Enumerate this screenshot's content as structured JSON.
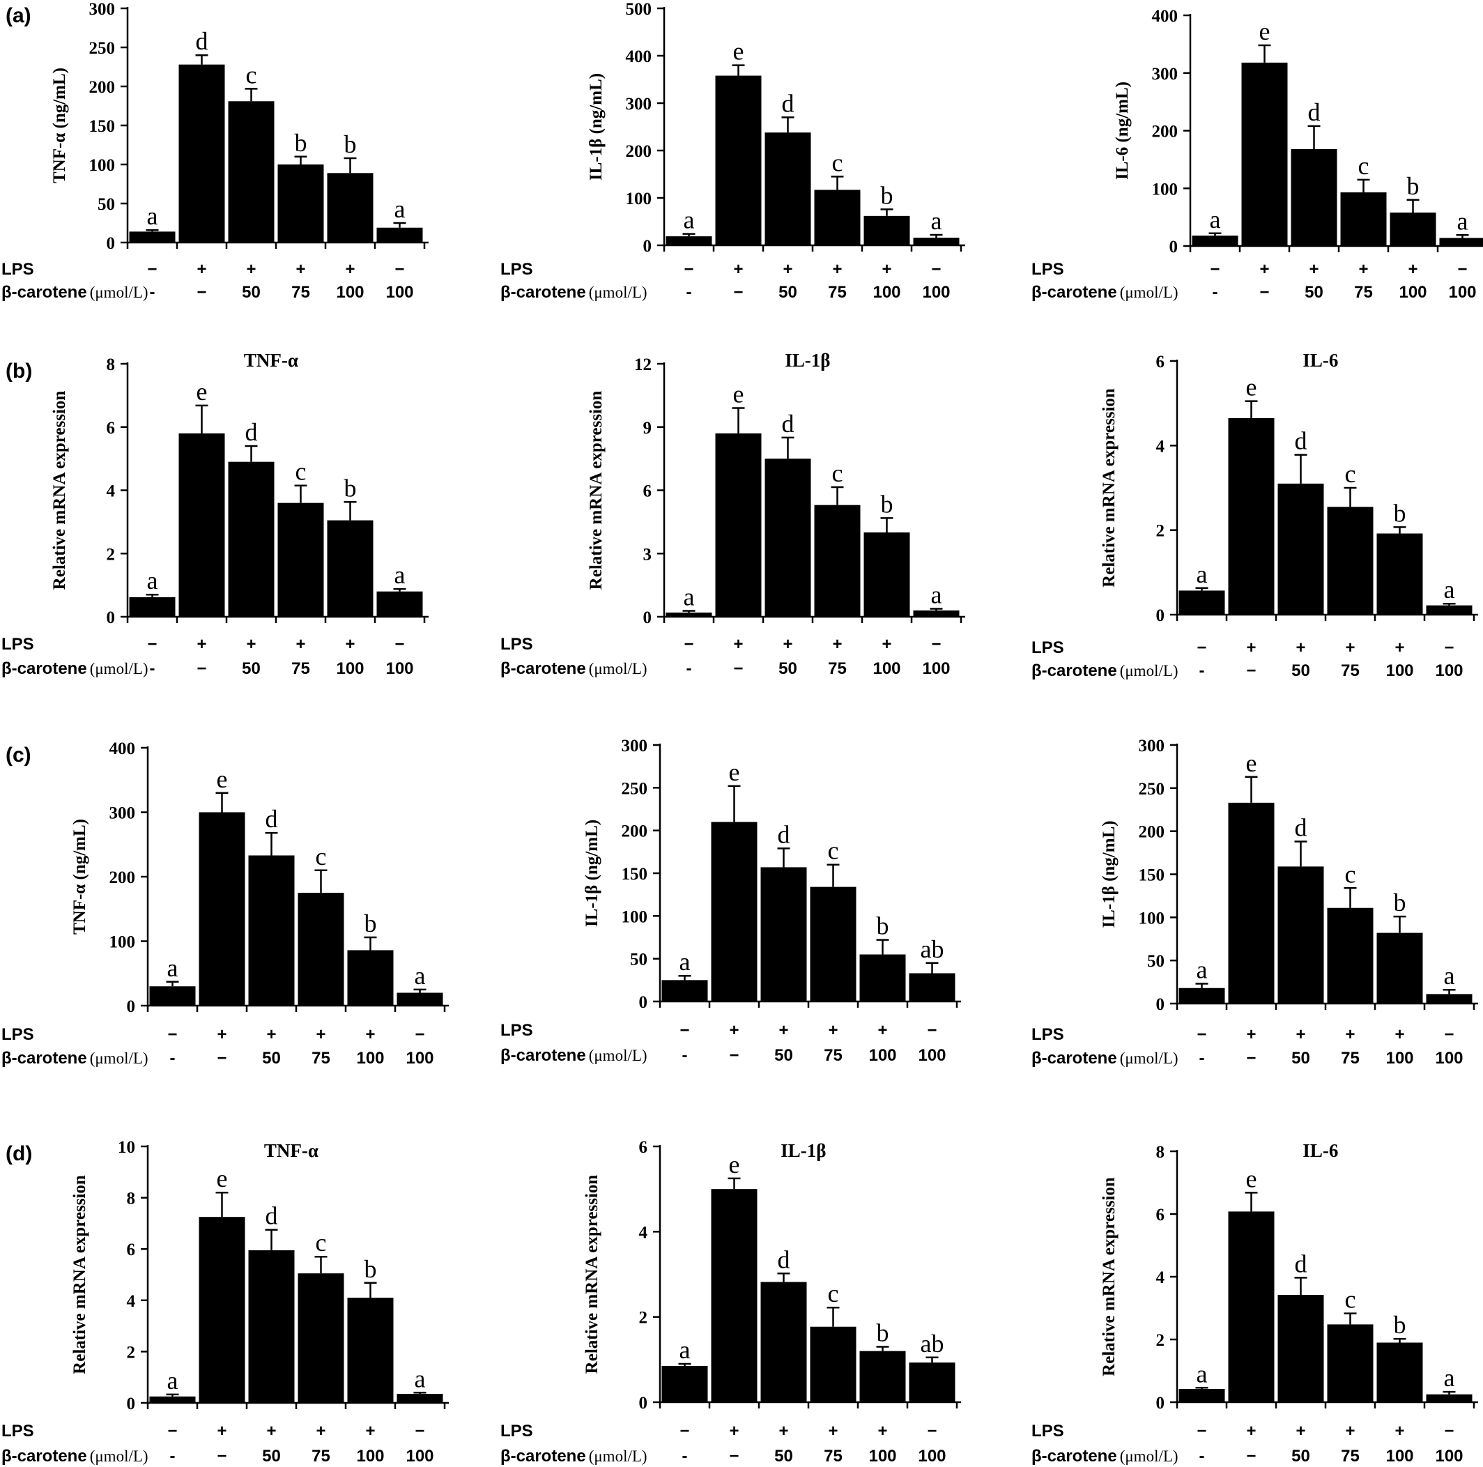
{
  "row_labels": {
    "lps": "LPS",
    "carotene": "β-carotene",
    "carotene_unit": "(μmol/L)"
  },
  "lps_values": [
    "−",
    "+",
    "+",
    "+",
    "+",
    "−"
  ],
  "carotene_values": [
    "-",
    "−",
    "50",
    "75",
    "100",
    "100"
  ],
  "chart_data": [
    {
      "panel": "(a)",
      "type": "bar",
      "title": "",
      "ylabel": "TNF-α (ng/mL)",
      "ylim": [
        0,
        300
      ],
      "yticks": [
        0,
        50,
        100,
        150,
        200,
        250,
        300
      ],
      "values": [
        14,
        228,
        181,
        100,
        89,
        19
      ],
      "errors": [
        2,
        12,
        16,
        10,
        19,
        6
      ],
      "letters": [
        "a",
        "d",
        "c",
        "b",
        "b",
        "a"
      ]
    },
    {
      "panel": "",
      "type": "bar",
      "title": "",
      "ylabel": "IL-1β (ng/mL)",
      "ylim": [
        0,
        500
      ],
      "yticks": [
        0,
        100,
        200,
        300,
        400,
        500
      ],
      "values": [
        19,
        358,
        238,
        117,
        62,
        16
      ],
      "errors": [
        5,
        22,
        32,
        28,
        14,
        6
      ],
      "letters": [
        "a",
        "e",
        "d",
        "c",
        "b",
        "a"
      ]
    },
    {
      "panel": "",
      "type": "bar",
      "title": "",
      "ylabel": "IL-6 (ng/mL)",
      "ylim": [
        0,
        400
      ],
      "yticks": [
        0,
        100,
        200,
        300,
        400
      ],
      "values": [
        18,
        318,
        168,
        93,
        58,
        14
      ],
      "errors": [
        4,
        30,
        40,
        22,
        22,
        5
      ],
      "letters": [
        "a",
        "e",
        "d",
        "c",
        "b",
        "a"
      ]
    },
    {
      "panel": "(b)",
      "type": "bar",
      "title": "TNF-α",
      "ylabel": "Relative mRNA expression",
      "ylim": [
        0,
        8
      ],
      "yticks": [
        0,
        2,
        4,
        6,
        8
      ],
      "values": [
        0.62,
        5.8,
        4.9,
        3.6,
        3.05,
        0.8
      ],
      "errors": [
        0.08,
        0.88,
        0.5,
        0.55,
        0.58,
        0.08
      ],
      "letters": [
        "a",
        "e",
        "d",
        "c",
        "b",
        "a"
      ]
    },
    {
      "panel": "",
      "type": "bar",
      "title": "IL-1β",
      "ylabel": "Relative mRNA expression",
      "ylim": [
        0,
        12
      ],
      "yticks": [
        0,
        3,
        6,
        9,
        12
      ],
      "values": [
        0.2,
        8.7,
        7.5,
        5.3,
        4.0,
        0.3
      ],
      "errors": [
        0.08,
        1.2,
        1.0,
        0.85,
        0.68,
        0.08
      ],
      "letters": [
        "a",
        "e",
        "d",
        "c",
        "b",
        "a"
      ]
    },
    {
      "panel": "",
      "type": "bar",
      "title": "IL-6",
      "ylabel": "Relative mRNA expression",
      "ylim": [
        0,
        6
      ],
      "yticks": [
        0,
        2,
        4,
        6
      ],
      "values": [
        0.57,
        4.65,
        3.1,
        2.55,
        1.92,
        0.22
      ],
      "errors": [
        0.06,
        0.4,
        0.68,
        0.45,
        0.15,
        0.04
      ],
      "letters": [
        "a",
        "e",
        "d",
        "c",
        "b",
        "a"
      ]
    },
    {
      "panel": "(c)",
      "type": "bar",
      "title": "",
      "ylabel": "TNF-α (ng/mL)",
      "ylim": [
        0,
        400
      ],
      "yticks": [
        0,
        100,
        200,
        300,
        400
      ],
      "values": [
        30,
        300,
        233,
        175,
        86,
        20
      ],
      "errors": [
        7,
        30,
        35,
        35,
        20,
        5
      ],
      "letters": [
        "a",
        "e",
        "d",
        "c",
        "b",
        "a"
      ]
    },
    {
      "panel": "",
      "type": "bar",
      "title": "",
      "ylabel": "IL-1β (ng/mL)",
      "ylim": [
        0,
        300
      ],
      "yticks": [
        0,
        50,
        100,
        150,
        200,
        250,
        300
      ],
      "values": [
        25,
        210,
        157,
        134,
        55,
        33
      ],
      "errors": [
        5,
        42,
        22,
        26,
        17,
        12
      ],
      "letters": [
        "a",
        "e",
        "d",
        "c",
        "b",
        "ab"
      ]
    },
    {
      "panel": "",
      "type": "bar",
      "title": "",
      "ylabel": "IL-1β (ng/mL)",
      "ylim": [
        0,
        300
      ],
      "yticks": [
        0,
        50,
        100,
        150,
        200,
        250,
        300
      ],
      "values": [
        18,
        233,
        159,
        111,
        82,
        11
      ],
      "errors": [
        5,
        30,
        29,
        23,
        19,
        5
      ],
      "letters": [
        "a",
        "e",
        "d",
        "c",
        "b",
        "a"
      ]
    },
    {
      "panel": "(d)",
      "type": "bar",
      "title": "TNF-α",
      "ylabel": "Relative mRNA expression",
      "ylim": [
        0,
        10
      ],
      "yticks": [
        0,
        2,
        4,
        6,
        8,
        10
      ],
      "values": [
        0.25,
        7.25,
        5.95,
        5.05,
        4.1,
        0.35
      ],
      "errors": [
        0.08,
        0.95,
        0.8,
        0.65,
        0.58,
        0.05
      ],
      "letters": [
        "a",
        "e",
        "d",
        "c",
        "b",
        "a"
      ]
    },
    {
      "panel": "",
      "type": "bar",
      "title": "IL-1β",
      "ylabel": "Relative mRNA expression",
      "ylim": [
        0,
        6
      ],
      "yticks": [
        0,
        2,
        4,
        6
      ],
      "values": [
        0.85,
        5.0,
        2.82,
        1.77,
        1.2,
        0.93
      ],
      "errors": [
        0.05,
        0.25,
        0.2,
        0.45,
        0.1,
        0.12
      ],
      "letters": [
        "a",
        "e",
        "d",
        "c",
        "b",
        "ab"
      ]
    },
    {
      "panel": "",
      "type": "bar",
      "title": "IL-6",
      "ylabel": "Relative mRNA expression",
      "ylim": [
        0,
        8
      ],
      "yticks": [
        0,
        2,
        4,
        6,
        8
      ],
      "values": [
        0.42,
        6.08,
        3.42,
        2.48,
        1.9,
        0.25
      ],
      "errors": [
        0.04,
        0.6,
        0.55,
        0.35,
        0.12,
        0.08
      ],
      "letters": [
        "a",
        "e",
        "d",
        "c",
        "b",
        "a"
      ]
    }
  ]
}
